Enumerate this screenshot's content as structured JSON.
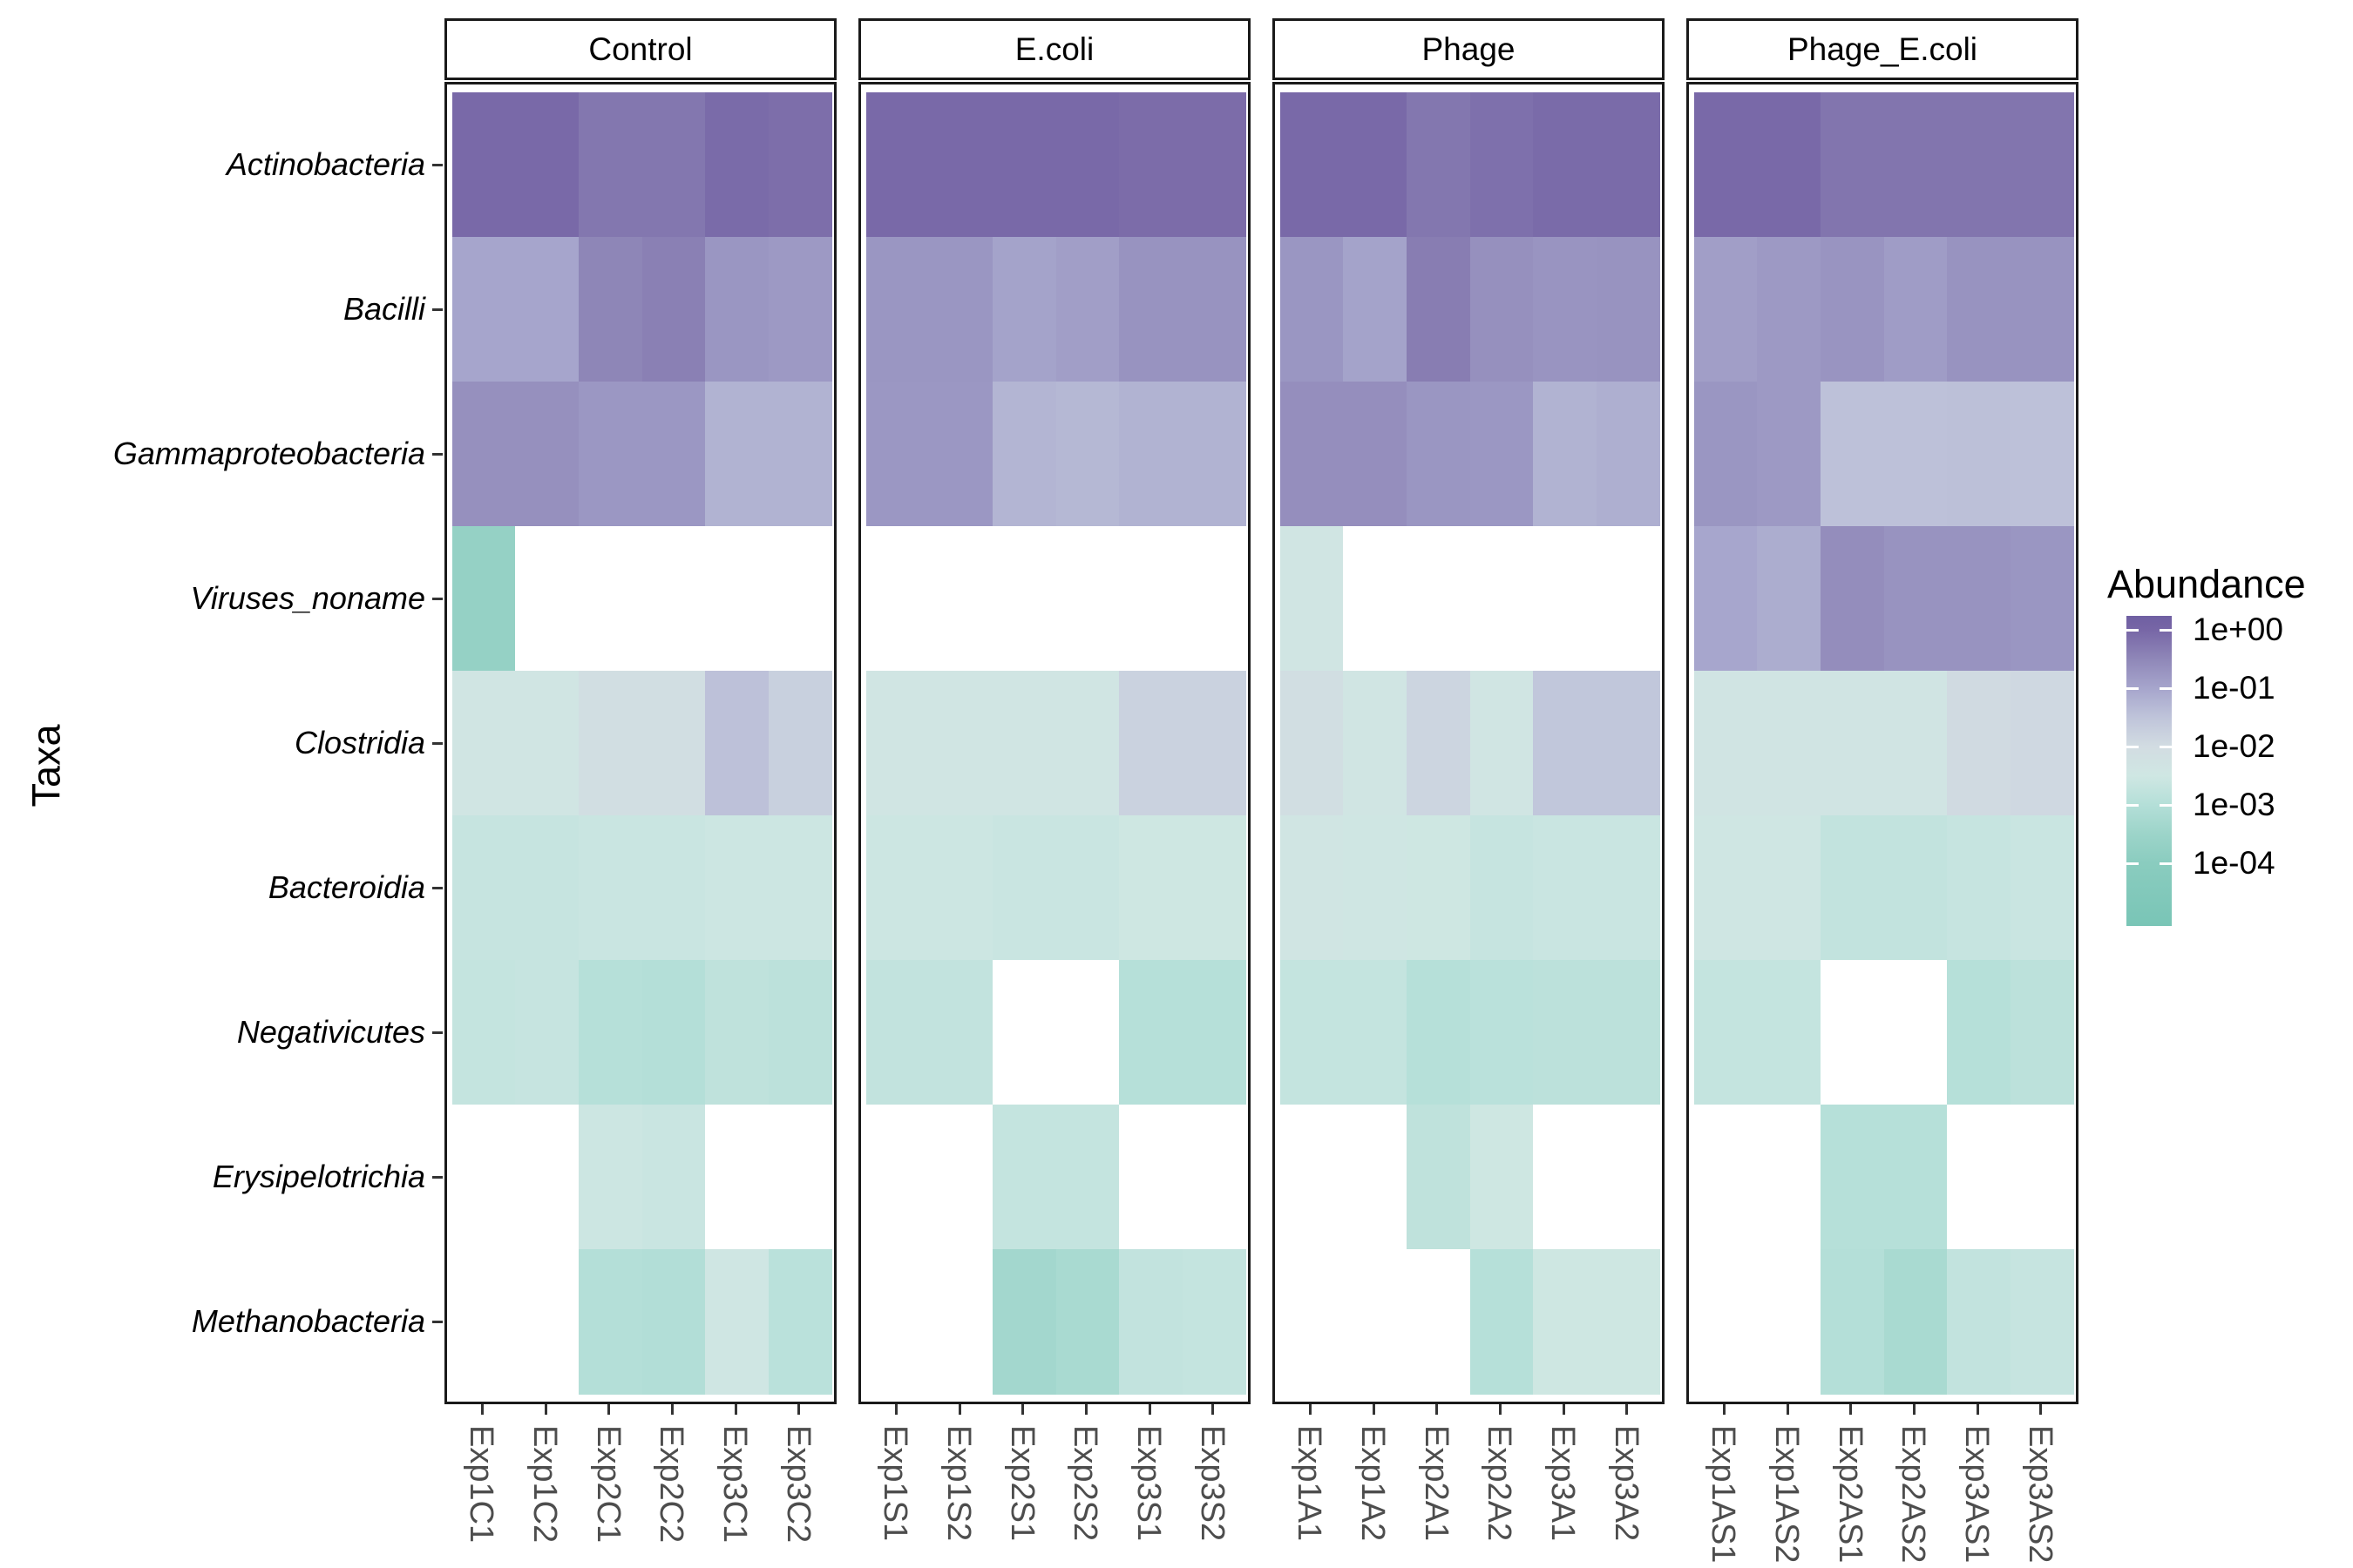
{
  "figure": {
    "y_axis_title": "Taxa",
    "legend_title": "Abundance"
  },
  "chart_data": {
    "type": "heatmap",
    "title": "",
    "xlabel": "",
    "ylabel": "Taxa",
    "rows": [
      "Actinobacteria",
      "Bacilli",
      "Gammaproteobacteria",
      "Viruses_noname",
      "Clostridia",
      "Bacteroidia",
      "Negativicutes",
      "Erysipelotrichia",
      "Methanobacteria"
    ],
    "facets": [
      {
        "label": "Control",
        "columns": [
          "Exp1C1",
          "Exp1C2",
          "Exp2C1",
          "Exp2C2",
          "Exp3C1",
          "Exp3C2"
        ],
        "values": [
          [
            0.9,
            0.9,
            0.55,
            0.55,
            0.85,
            0.75
          ],
          [
            0.1,
            0.1,
            0.33,
            0.4,
            0.18,
            0.16
          ],
          [
            0.22,
            0.22,
            0.17,
            0.17,
            0.06,
            0.06
          ],
          [
            0.0002,
            null,
            null,
            null,
            null,
            null
          ],
          [
            0.004,
            0.004,
            0.008,
            0.008,
            0.035,
            0.018
          ],
          [
            0.0022,
            0.0022,
            0.0025,
            0.0025,
            0.0028,
            0.0028
          ],
          [
            0.002,
            0.0022,
            0.0011,
            0.001,
            0.0016,
            0.0014
          ],
          [
            null,
            null,
            0.0028,
            0.0025,
            null,
            null
          ],
          [
            null,
            null,
            0.001,
            0.0009,
            0.0035,
            0.0013
          ]
        ]
      },
      {
        "label": "E.coli",
        "columns": [
          "Exp1S1",
          "Exp1S2",
          "Exp2S1",
          "Exp2S2",
          "Exp3S1",
          "Exp3S2"
        ],
        "values": [
          [
            0.9,
            0.9,
            0.9,
            0.9,
            0.8,
            0.8
          ],
          [
            0.18,
            0.18,
            0.11,
            0.13,
            0.2,
            0.2
          ],
          [
            0.17,
            0.17,
            0.055,
            0.05,
            0.06,
            0.06
          ],
          [
            null,
            null,
            null,
            null,
            null,
            null
          ],
          [
            0.004,
            0.004,
            0.004,
            0.004,
            0.016,
            0.016
          ],
          [
            0.0028,
            0.0028,
            0.0025,
            0.0025,
            0.003,
            0.003
          ],
          [
            0.0018,
            0.0018,
            null,
            null,
            0.0011,
            0.0011
          ],
          [
            null,
            null,
            0.002,
            0.002,
            null,
            null
          ],
          [
            null,
            null,
            0.00045,
            0.0006,
            0.0018,
            0.002
          ]
        ]
      },
      {
        "label": "Phage",
        "columns": [
          "Exp1A1",
          "Exp1A2",
          "Exp2A1",
          "Exp2A2",
          "Exp3A1",
          "Exp3A2"
        ],
        "values": [
          [
            0.9,
            0.9,
            0.55,
            0.7,
            0.85,
            0.85
          ],
          [
            0.18,
            0.11,
            0.45,
            0.22,
            0.19,
            0.2
          ],
          [
            0.24,
            0.24,
            0.18,
            0.17,
            0.06,
            0.07
          ],
          [
            0.004,
            null,
            null,
            null,
            null,
            null
          ],
          [
            0.008,
            0.004,
            0.014,
            0.004,
            0.028,
            0.028
          ],
          [
            0.004,
            0.0035,
            0.003,
            0.0022,
            0.0025,
            0.0025
          ],
          [
            0.002,
            0.002,
            0.0011,
            0.0013,
            0.0014,
            0.0014
          ],
          [
            null,
            null,
            0.0016,
            0.003,
            null,
            null
          ],
          [
            null,
            null,
            null,
            0.0011,
            0.003,
            0.003
          ]
        ]
      },
      {
        "label": "Phage_E.coli",
        "columns": [
          "Exp1AS1",
          "Exp1AS2",
          "Exp2AS1",
          "Exp2AS2",
          "Exp3AS1",
          "Exp3AS2"
        ],
        "values": [
          [
            0.9,
            0.9,
            0.6,
            0.6,
            0.6,
            0.6
          ],
          [
            0.13,
            0.16,
            0.19,
            0.14,
            0.2,
            0.2
          ],
          [
            0.18,
            0.16,
            0.035,
            0.035,
            0.037,
            0.035
          ],
          [
            0.095,
            0.075,
            0.25,
            0.2,
            0.2,
            0.18
          ],
          [
            0.0045,
            0.0045,
            0.0045,
            0.0045,
            0.011,
            0.012
          ],
          [
            0.0035,
            0.0035,
            0.0018,
            0.0018,
            0.0022,
            0.0025
          ],
          [
            0.002,
            0.002,
            null,
            null,
            0.0011,
            0.0014
          ],
          [
            null,
            null,
            0.0011,
            0.0011,
            null,
            null
          ],
          [
            null,
            null,
            0.001,
            0.0006,
            0.0018,
            0.0022
          ]
        ]
      }
    ],
    "legend": {
      "title": "Abundance",
      "tick_labels": [
        "1e+00",
        "1e-01",
        "1e-02",
        "1e-03",
        "1e-04"
      ],
      "tick_logs": [
        0,
        -1,
        -2,
        -3,
        -4
      ],
      "log_top": 0.24,
      "log_bottom": -5.07
    },
    "color_scale": {
      "na_color": "#ffffff",
      "stops": [
        {
          "log": 0.24,
          "color": "#6f5fa2"
        },
        {
          "log": 0,
          "color": "#7766a6"
        },
        {
          "log": -0.5,
          "color": "#8f87b8"
        },
        {
          "log": -1,
          "color": "#a6a5cc"
        },
        {
          "log": -1.5,
          "color": "#bfc4da"
        },
        {
          "log": -2,
          "color": "#d2dce2"
        },
        {
          "log": -2.5,
          "color": "#cfe7e3"
        },
        {
          "log": -3,
          "color": "#b4dfd8"
        },
        {
          "log": -3.5,
          "color": "#9cd4c9"
        },
        {
          "log": -4,
          "color": "#8accbf"
        },
        {
          "log": -5.1,
          "color": "#79c5b6"
        }
      ]
    }
  }
}
